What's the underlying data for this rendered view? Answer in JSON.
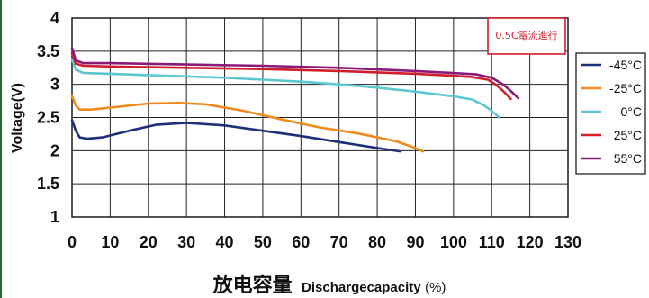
{
  "chart_data": {
    "type": "line",
    "xlabel_cn": "放电容量",
    "xlabel_en": "Dischargecapacity",
    "xlabel_unit": "(%)",
    "ylabel": "Voltage(V)",
    "xlim": [
      0,
      130
    ],
    "ylim": [
      1,
      4
    ],
    "x_ticks": [
      "0",
      "10",
      "20",
      "30",
      "40",
      "50",
      "60",
      "70",
      "80",
      "90",
      "100",
      "110",
      "120",
      "130"
    ],
    "y_ticks": [
      "1",
      "1.5",
      "2",
      "2.5",
      "3",
      "3.5",
      "4"
    ],
    "grid": true,
    "legend_position": "right",
    "annotation": "0.5C電流進行",
    "series": [
      {
        "name": "-45°C",
        "color": "#1e2f7a",
        "points": [
          [
            0,
            2.46
          ],
          [
            1,
            2.3
          ],
          [
            2,
            2.2
          ],
          [
            4,
            2.18
          ],
          [
            8,
            2.2
          ],
          [
            15,
            2.3
          ],
          [
            22,
            2.39
          ],
          [
            30,
            2.42
          ],
          [
            40,
            2.38
          ],
          [
            50,
            2.3
          ],
          [
            60,
            2.22
          ],
          [
            70,
            2.13
          ],
          [
            80,
            2.04
          ],
          [
            86,
            1.99
          ]
        ]
      },
      {
        "name": "-25°C",
        "color": "#f08a1c",
        "points": [
          [
            0,
            2.82
          ],
          [
            1,
            2.68
          ],
          [
            2,
            2.62
          ],
          [
            5,
            2.62
          ],
          [
            10,
            2.65
          ],
          [
            20,
            2.71
          ],
          [
            28,
            2.72
          ],
          [
            35,
            2.7
          ],
          [
            45,
            2.6
          ],
          [
            55,
            2.47
          ],
          [
            65,
            2.35
          ],
          [
            75,
            2.26
          ],
          [
            85,
            2.14
          ],
          [
            89,
            2.06
          ],
          [
            92,
            1.99
          ]
        ]
      },
      {
        "name": "0°C",
        "color": "#5cc7cf",
        "points": [
          [
            0,
            3.38
          ],
          [
            1,
            3.22
          ],
          [
            3,
            3.17
          ],
          [
            10,
            3.16
          ],
          [
            20,
            3.14
          ],
          [
            30,
            3.12
          ],
          [
            40,
            3.1
          ],
          [
            50,
            3.07
          ],
          [
            60,
            3.04
          ],
          [
            70,
            3.0
          ],
          [
            80,
            2.95
          ],
          [
            90,
            2.89
          ],
          [
            100,
            2.82
          ],
          [
            105,
            2.77
          ],
          [
            108,
            2.68
          ],
          [
            110,
            2.6
          ],
          [
            112,
            2.5
          ]
        ]
      },
      {
        "name": "25°C",
        "color": "#d01f2b",
        "points": [
          [
            0,
            3.47
          ],
          [
            1,
            3.31
          ],
          [
            3,
            3.28
          ],
          [
            10,
            3.27
          ],
          [
            30,
            3.25
          ],
          [
            50,
            3.23
          ],
          [
            70,
            3.2
          ],
          [
            90,
            3.16
          ],
          [
            100,
            3.13
          ],
          [
            105,
            3.11
          ],
          [
            109,
            3.07
          ],
          [
            111,
            3.0
          ],
          [
            113,
            2.9
          ],
          [
            115,
            2.78
          ]
        ]
      },
      {
        "name": "55°C",
        "color": "#8a1a7a",
        "points": [
          [
            0,
            3.55
          ],
          [
            1,
            3.36
          ],
          [
            3,
            3.32
          ],
          [
            10,
            3.32
          ],
          [
            30,
            3.3
          ],
          [
            50,
            3.28
          ],
          [
            70,
            3.25
          ],
          [
            90,
            3.2
          ],
          [
            100,
            3.17
          ],
          [
            106,
            3.15
          ],
          [
            110,
            3.1
          ],
          [
            113,
            3.0
          ],
          [
            115,
            2.9
          ],
          [
            117,
            2.79
          ]
        ]
      }
    ]
  }
}
